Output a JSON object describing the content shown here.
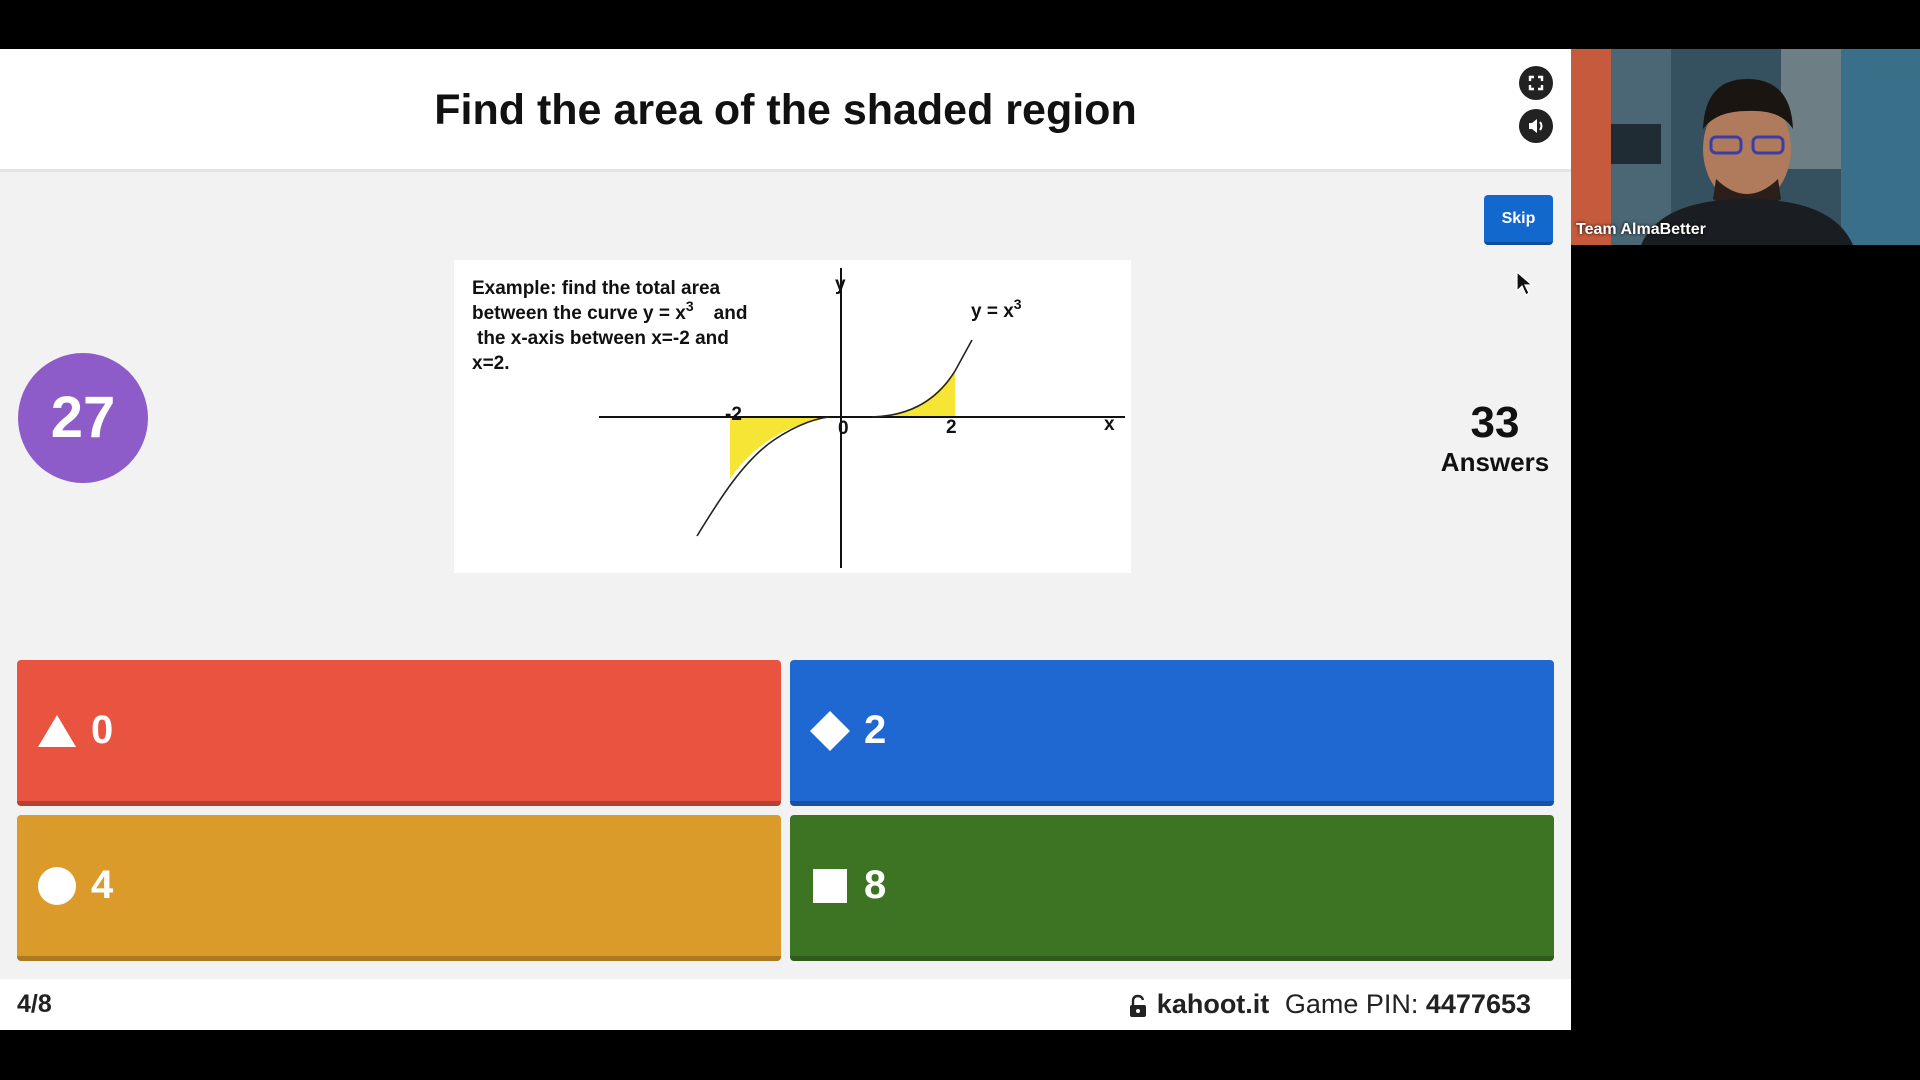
{
  "question": {
    "title": "Find the area of the shaded region",
    "timer": "27",
    "answers_count": "33",
    "answers_label": "Answers",
    "skip_label": "Skip"
  },
  "figure": {
    "text_line1": "Example: find the total area",
    "text_line2a": "between the curve y = x",
    "text_line2_sup": "3",
    "text_line2b": "and",
    "text_line3": "the x-axis between x=-2 and",
    "text_line4": "x=2.",
    "curve_label": "y = x",
    "curve_label_sup": "3",
    "axis_y": "y",
    "axis_x": "x",
    "tick_neg2": "-2",
    "tick_0": "0",
    "tick_2": "2",
    "shade_color": "#f7e535"
  },
  "answers": [
    {
      "value": "0",
      "shape": "triangle-icon",
      "color": "#e85440"
    },
    {
      "value": "2",
      "shape": "diamond-icon",
      "color": "#1f68d2"
    },
    {
      "value": "4",
      "shape": "circle-icon",
      "color": "#db9b2b"
    },
    {
      "value": "8",
      "shape": "square-icon",
      "color": "#3c7424"
    }
  ],
  "footer": {
    "progress": "4/8",
    "site": "kahoot.it",
    "pin_label": "Game PIN:",
    "pin": "4477653"
  },
  "webcam": {
    "name": "Team AlmaBetter"
  }
}
